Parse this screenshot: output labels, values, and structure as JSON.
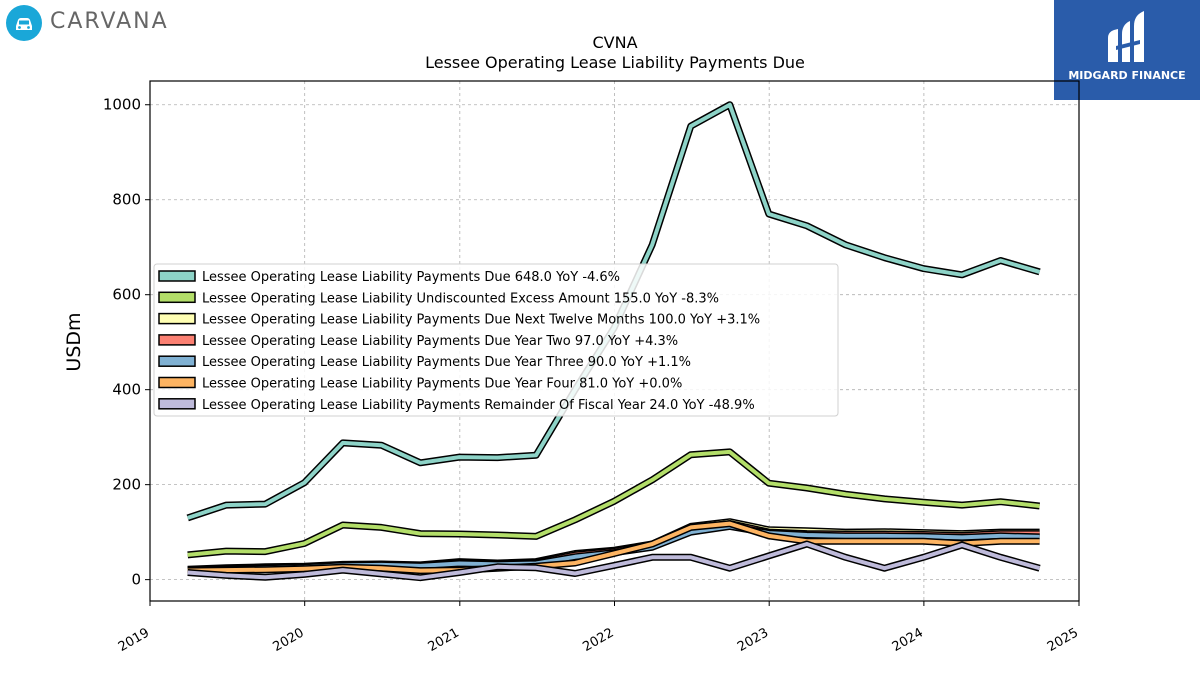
{
  "branding": {
    "company_word": "CARVANA",
    "publisher_name": "MIDGARD FINANCE",
    "publisher_color": "#2a5caa",
    "company_color": "#1aa7d8"
  },
  "chart_data": {
    "type": "line",
    "title": "CVNA",
    "subtitle": "Lessee Operating Lease Liability Payments Due",
    "xlabel": "",
    "ylabel": "USDm",
    "x_type": "date",
    "xlim": [
      "2019-01-01",
      "2025-01-01"
    ],
    "ylim": [
      -45,
      1050
    ],
    "xticks": [
      "2019",
      "2020",
      "2021",
      "2022",
      "2023",
      "2024",
      "2025"
    ],
    "yticks": [
      0,
      200,
      400,
      600,
      800,
      1000
    ],
    "grid": true,
    "legend_position": "center-left",
    "x": [
      "2019-03-31",
      "2019-06-30",
      "2019-09-30",
      "2019-12-31",
      "2020-03-31",
      "2020-06-30",
      "2020-09-30",
      "2020-12-31",
      "2021-03-31",
      "2021-06-30",
      "2021-09-30",
      "2021-12-31",
      "2022-03-31",
      "2022-06-30",
      "2022-09-30",
      "2022-12-31",
      "2023-03-31",
      "2023-06-30",
      "2023-09-30",
      "2023-12-31",
      "2024-03-31",
      "2024-06-30",
      "2024-09-30"
    ],
    "series": [
      {
        "name": "Lessee Operating Lease Liability Payments Due",
        "legend_label": "Lessee Operating Lease Liability Payments Due  648.0 YoY -4.6%",
        "color": "#8dd3c7",
        "values": [
          130,
          157,
          159,
          204,
          288,
          283,
          246,
          258,
          257,
          262,
          400,
          530,
          705,
          955,
          1000,
          770,
          745,
          705,
          678,
          655,
          642,
          672,
          648
        ]
      },
      {
        "name": "Lessee Operating Lease Liability Undiscounted Excess Amount",
        "legend_label": "Lessee Operating Lease Liability Undiscounted Excess Amount  155.0 YoY -8.3%",
        "color": "#b3de69",
        "values": [
          52,
          60,
          59,
          76,
          115,
          110,
          97,
          96,
          94,
          91,
          126,
          165,
          210,
          263,
          269,
          203,
          193,
          180,
          170,
          163,
          157,
          164,
          155
        ]
      },
      {
        "name": "Lessee Operating Lease Liability Payments Due Next Twelve Months",
        "legend_label": "Lessee Operating Lease Liability Payments Due Next Twelve Months  100.0 YoY +3.1%",
        "color": "#ffffb3",
        "values": [
          22,
          25,
          27,
          28,
          32,
          33,
          31,
          38,
          35,
          38,
          55,
          62,
          75,
          112,
          122,
          105,
          103,
          100,
          101,
          99,
          97,
          100,
          100
        ]
      },
      {
        "name": "Lessee Operating Lease Liability Payments Due Year Two",
        "legend_label": "Lessee Operating Lease Liability Payments Due Year Two  97.0 YoY +4.3%",
        "color": "#fb8072",
        "values": [
          21,
          24,
          26,
          27,
          31,
          32,
          30,
          36,
          34,
          36,
          52,
          60,
          72,
          108,
          118,
          100,
          97,
          96,
          96,
          95,
          93,
          97,
          97
        ]
      },
      {
        "name": "Lessee Operating Lease Liability Payments Due Year Three",
        "legend_label": "Lessee Operating Lease Liability Payments Due Year Three  90.0 YoY +1.1%",
        "color": "#80b1d3",
        "values": [
          20,
          22,
          24,
          26,
          30,
          31,
          29,
          34,
          32,
          34,
          48,
          57,
          68,
          100,
          112,
          98,
          94,
          92,
          92,
          91,
          89,
          92,
          90
        ]
      },
      {
        "name": "Lessee Operating Lease Liability Payments Due Year Four",
        "legend_label": "Lessee Operating Lease Liability Payments Due Year Four  81.0 YoY +0.0%",
        "color": "#fdb462",
        "values": [
          19,
          20,
          21,
          23,
          26,
          24,
          19,
          20,
          24,
          28,
          35,
          55,
          75,
          110,
          118,
          92,
          81,
          81,
          81,
          81,
          76,
          81,
          81
        ]
      },
      {
        "name": "Lessee Operating Lease Liability Payments Remainder Of Fiscal Year",
        "legend_label": "Lessee Operating Lease Liability Payments Remainder Of Fiscal Year  24.0 YoY -48.9%",
        "color": "#bebada",
        "values": [
          15,
          9,
          5,
          11,
          20,
          12,
          4,
          15,
          27,
          25,
          13,
          30,
          47,
          47,
          24,
          50,
          75,
          47,
          24,
          47,
          73,
          47,
          24
        ]
      }
    ]
  }
}
